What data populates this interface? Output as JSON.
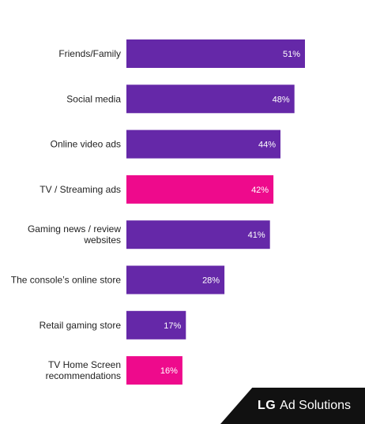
{
  "chart_data": {
    "type": "bar",
    "orientation": "horizontal",
    "categories": [
      "Friends/Family",
      "Social media",
      "Online video ads",
      "TV / Streaming ads",
      "Gaming news / review websites",
      "The console’s online store",
      "Retail gaming store",
      "TV Home Screen recommendations"
    ],
    "values": [
      51,
      48,
      44,
      42,
      41,
      28,
      17,
      16
    ],
    "value_labels": [
      "51%",
      "48%",
      "44%",
      "42%",
      "41%",
      "28%",
      "17%",
      "16%"
    ],
    "highlighted": [
      false,
      false,
      false,
      true,
      false,
      false,
      false,
      true
    ],
    "colors": {
      "default": "#6528a8",
      "highlight": "#ee0a8c"
    },
    "xlim": [
      0,
      51
    ],
    "grid": false,
    "legend": "none",
    "title": "",
    "xlabel": "",
    "ylabel": ""
  },
  "brand": {
    "logo_text": "LG",
    "product_text": "Ad Solutions"
  }
}
